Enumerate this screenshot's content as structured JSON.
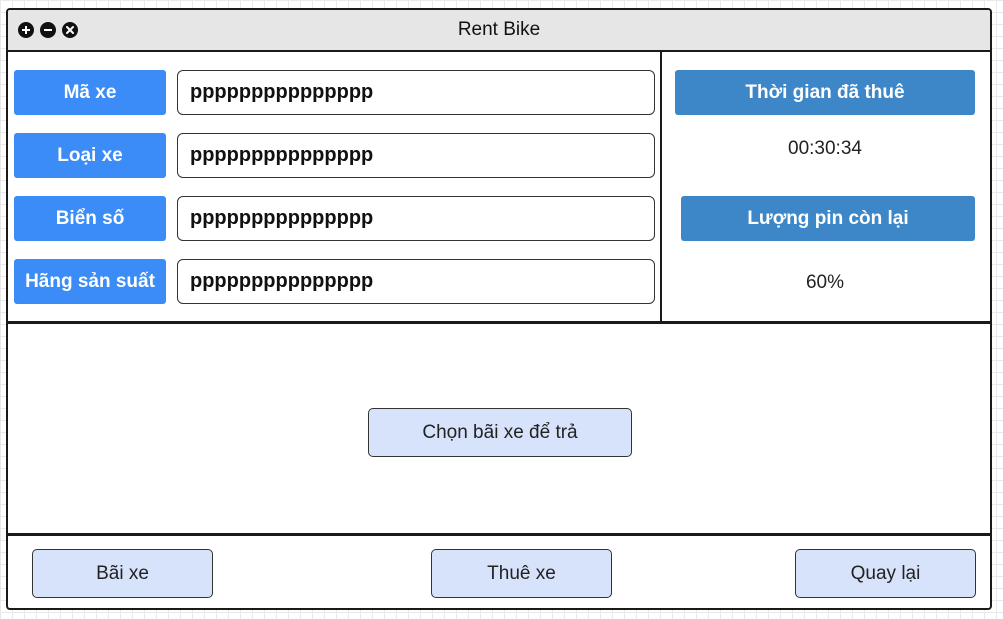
{
  "window": {
    "title": "Rent Bike",
    "controls": [
      "plus-icon",
      "minus-icon",
      "close-icon"
    ]
  },
  "bike_info": {
    "fields": [
      {
        "label": "Mã xe",
        "value": "ppppppppppppppp"
      },
      {
        "label": "Loại xe",
        "value": "ppppppppppppppp"
      },
      {
        "label": "Biển số",
        "value": "ppppppppppppppp"
      },
      {
        "label": "Hãng sản suất",
        "value": "ppppppppppppppp"
      }
    ]
  },
  "rental_status": {
    "time_header": "Thời gian đã thuê",
    "time_value": "00:30:34",
    "battery_header": "Lượng pin còn lại",
    "battery_value": "60%"
  },
  "center": {
    "choose_station_label": "Chọn bãi xe để trả"
  },
  "footer": {
    "station_label": "Bãi xe",
    "rent_label": "Thuê xe",
    "back_label": "Quay lại"
  },
  "colors": {
    "label_blue": "#3b8cf6",
    "header_blue": "#3d87c8",
    "button_fill": "#d7e3fb",
    "titlebar": "#e6e6e6"
  }
}
